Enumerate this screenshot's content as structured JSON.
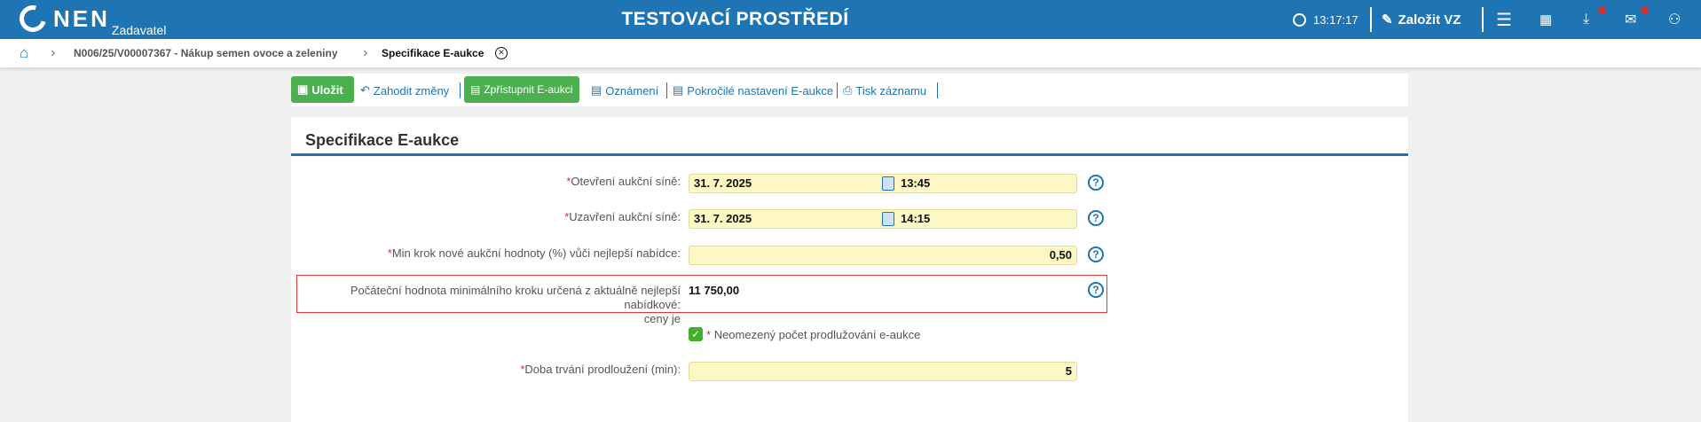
{
  "header": {
    "logo": "NEN",
    "role": "Zadavatel",
    "environment": "TESTOVACÍ PROSTŘEDÍ",
    "time": "13:17:17",
    "create_label": "Založit VZ",
    "notification_color": "#d32f2f",
    "brand_color": "#1f74b3"
  },
  "breadcrumb": {
    "items": [
      "N006/25/V00007367 - Nákup semen ovoce a zeleniny",
      "Specifikace E-aukce"
    ]
  },
  "toolbar": {
    "save": "Uložit",
    "discard": "Zahodit změny",
    "publish": "Zpřístupnit E-aukci",
    "notices": "Oznámení",
    "advanced": "Pokročilé nastavení E-aukce",
    "print": "Tisk záznamu"
  },
  "form": {
    "title": "Specifikace E-aukce",
    "open_label": "Otevření aukční síně:",
    "open_date": "31. 7. 2025",
    "open_time": "13:45",
    "close_label": "Uzavření aukční síně:",
    "close_date": "31. 7. 2025",
    "close_time": "14:15",
    "minstep_label": "Min krok nové aukční hodnoty (%) vůči nejlepší nabídce:",
    "minstep_value": "0,50",
    "initial_label": "Počáteční hodnota minimálního kroku určená z aktuálně nejlepší nabídkové:",
    "initial_label2": "ceny je",
    "initial_value": "11 750,00",
    "unlimited_label": "Neomezený počet prodlužování e-aukce",
    "unlimited_checked": true,
    "duration_label": "Doba trvání prodloužení (min):",
    "duration_value": "5",
    "required_mark": "*",
    "help": "?"
  }
}
